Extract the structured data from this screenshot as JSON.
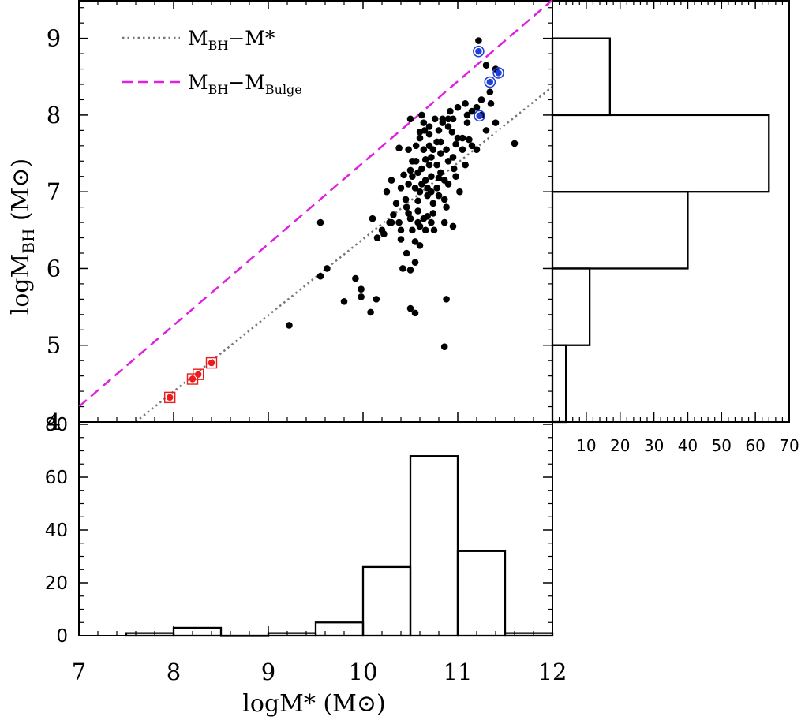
{
  "chart_data": {
    "type": "scatter",
    "description_title": "",
    "main": {
      "xlim": [
        7,
        12
      ],
      "ylim": [
        4,
        9.5
      ],
      "xticks": [
        "7",
        "8",
        "9",
        "10",
        "11",
        "12"
      ],
      "yticks": [
        "4",
        "5",
        "6",
        "7",
        "8",
        "9"
      ],
      "xlabel": {
        "base": "logM",
        "mid": "*",
        "tail": " (M",
        "sun": "⊙",
        "close": ")"
      },
      "ylabel": {
        "base": "logM",
        "sub": "BH",
        "tail": " (M",
        "sun": "⊙",
        "close": ")"
      },
      "series": [
        {
          "name": "galaxies",
          "color": "#000000",
          "points": [
            [
              10.38,
              6.6
            ],
            [
              10.48,
              6.72
            ],
            [
              10.58,
              6.88
            ],
            [
              10.72,
              7.45
            ],
            [
              10.9,
              7.1
            ],
            [
              10.62,
              7.3
            ],
            [
              10.55,
              7.05
            ],
            [
              10.7,
              7.6
            ],
            [
              10.8,
              7.8
            ],
            [
              10.68,
              6.95
            ],
            [
              10.5,
              6.65
            ],
            [
              10.45,
              6.9
            ],
            [
              10.4,
              6.5
            ],
            [
              10.66,
              7.15
            ],
            [
              10.74,
              6.85
            ],
            [
              10.82,
              7.25
            ],
            [
              10.88,
              7.55
            ],
            [
              10.6,
              7.7
            ],
            [
              10.52,
              7.4
            ],
            [
              10.78,
              7.05
            ],
            [
              10.9,
              7.85
            ],
            [
              10.95,
              7.95
            ],
            [
              11.0,
              8.1
            ],
            [
              11.05,
              7.7
            ],
            [
              11.1,
              7.9
            ],
            [
              11.15,
              8.05
            ],
            [
              11.25,
              8.2
            ],
            [
              11.3,
              7.8
            ],
            [
              11.05,
              7.55
            ],
            [
              10.98,
              7.2
            ],
            [
              10.86,
              6.6
            ],
            [
              10.75,
              6.5
            ],
            [
              10.66,
              6.5
            ],
            [
              10.6,
              6.55
            ],
            [
              10.55,
              6.35
            ],
            [
              10.46,
              6.2
            ],
            [
              10.42,
              6.0
            ],
            [
              10.32,
              6.7
            ],
            [
              10.22,
              6.45
            ],
            [
              10.15,
              6.4
            ],
            [
              10.1,
              6.65
            ],
            [
              10.25,
              7.0
            ],
            [
              10.3,
              7.15
            ],
            [
              10.48,
              7.1
            ],
            [
              10.58,
              7.25
            ],
            [
              10.64,
              7.55
            ],
            [
              10.7,
              7.75
            ],
            [
              10.76,
              7.95
            ],
            [
              10.84,
              7.95
            ],
            [
              10.92,
              8.05
            ],
            [
              11.08,
              8.15
            ],
            [
              11.2,
              8.1
            ],
            [
              11.15,
              7.6
            ],
            [
              11.25,
              8.0
            ],
            [
              11.34,
              8.3
            ],
            [
              11.4,
              8.6
            ],
            [
              11.3,
              8.65
            ],
            [
              11.22,
              8.97
            ],
            [
              11.35,
              8.15
            ],
            [
              11.6,
              7.63
            ],
            [
              11.4,
              7.9
            ],
            [
              11.2,
              7.55
            ],
            [
              10.95,
              6.55
            ],
            [
              10.6,
              6.3
            ],
            [
              10.55,
              6.08
            ],
            [
              10.5,
              5.98
            ],
            [
              10.5,
              5.48
            ],
            [
              10.55,
              5.42
            ],
            [
              10.88,
              5.6
            ],
            [
              10.86,
              4.98
            ],
            [
              10.14,
              5.6
            ],
            [
              10.08,
              5.43
            ],
            [
              9.98,
              5.73
            ],
            [
              9.98,
              5.63
            ],
            [
              9.92,
              5.87
            ],
            [
              9.8,
              5.57
            ],
            [
              9.62,
              6.0
            ],
            [
              9.55,
              6.6
            ],
            [
              9.55,
              5.9
            ],
            [
              9.22,
              5.26
            ],
            [
              10.38,
              7.57
            ],
            [
              10.65,
              7.8
            ],
            [
              10.88,
              6.8
            ],
            [
              10.82,
              7.5
            ],
            [
              10.7,
              7.35
            ],
            [
              10.6,
              7.0
            ],
            [
              10.56,
              7.6
            ],
            [
              10.64,
              7.9
            ],
            [
              10.58,
              6.75
            ],
            [
              10.46,
              6.8
            ],
            [
              10.35,
              6.85
            ],
            [
              10.43,
              7.22
            ],
            [
              10.72,
              7.2
            ],
            [
              10.82,
              7.65
            ],
            [
              10.96,
              7.3
            ],
            [
              10.78,
              7.35
            ],
            [
              10.62,
              7.1
            ],
            [
              10.52,
              7.2
            ],
            [
              10.78,
              7.65
            ],
            [
              10.84,
              7.9
            ],
            [
              10.94,
              7.78
            ],
            [
              10.98,
              7.62
            ],
            [
              11.08,
              7.35
            ],
            [
              11.12,
              7.68
            ],
            [
              11.02,
              7.0
            ],
            [
              10.72,
              7.0
            ],
            [
              10.66,
              7.42
            ],
            [
              10.68,
              6.68
            ],
            [
              10.86,
              7.15
            ],
            [
              10.7,
              7.85
            ],
            [
              10.56,
              7.4
            ],
            [
              10.48,
              7.55
            ],
            [
              10.5,
              7.95
            ],
            [
              10.62,
              8.0
            ],
            [
              10.74,
              7.55
            ],
            [
              10.8,
              6.95
            ],
            [
              10.52,
              6.5
            ],
            [
              10.64,
              6.65
            ],
            [
              10.3,
              6.6
            ],
            [
              10.28,
              6.6
            ],
            [
              10.4,
              7.05
            ],
            [
              10.9,
              7.4
            ],
            [
              10.95,
              7.45
            ],
            [
              11.0,
              7.7
            ],
            [
              10.58,
              6.6
            ],
            [
              10.74,
              6.72
            ],
            [
              10.86,
              6.9
            ],
            [
              11.1,
              8.0
            ],
            [
              10.2,
              6.5
            ],
            [
              10.72,
              6.6
            ],
            [
              10.4,
              6.38
            ],
            [
              10.68,
              7.05
            ],
            [
              10.6,
              7.78
            ],
            [
              10.9,
              7.95
            ],
            [
              10.8,
              7.18
            ],
            [
              10.5,
              7.28
            ]
          ]
        },
        {
          "name": "blue circled",
          "color": "#1f3fd6",
          "points": [
            [
              11.22,
              8.83
            ],
            [
              11.43,
              8.55
            ],
            [
              11.34,
              8.43
            ],
            [
              11.23,
              7.99
            ]
          ]
        },
        {
          "name": "red boxed",
          "color": "#ee1b1b",
          "points": [
            [
              7.96,
              4.32
            ],
            [
              8.2,
              4.56
            ],
            [
              8.26,
              4.62
            ],
            [
              8.4,
              4.77
            ]
          ]
        }
      ],
      "lines": [
        {
          "name": "MBH-M*",
          "style": "dotted",
          "color": "#777777",
          "x": [
            7.6,
            12.0
          ],
          "y": [
            4.0,
            8.37
          ]
        },
        {
          "name": "MBH-MBulge",
          "style": "dashed",
          "color": "#e020e0",
          "x": [
            7.0,
            12.0
          ],
          "y": [
            4.2,
            9.5
          ]
        }
      ],
      "legend": [
        {
          "label_base": "M",
          "label_sub": "BH",
          "label_mid": "−M",
          "label_tail": "*",
          "tail_is_sub": false,
          "style": "dotted",
          "color": "#777777"
        },
        {
          "label_base": "M",
          "label_sub": "BH",
          "label_mid": "−M",
          "label_tail": "Bulge",
          "tail_is_sub": true,
          "style": "dashed",
          "color": "#e020e0"
        }
      ]
    },
    "bottom_hist": {
      "type": "histogram",
      "xlim": [
        7,
        12
      ],
      "ylim": [
        0,
        80
      ],
      "yticks": [
        "0",
        "20",
        "40",
        "60",
        "80"
      ],
      "bin_edges": [
        7.5,
        8.0,
        8.5,
        9.0,
        9.5,
        10.0,
        10.5,
        11.0,
        11.5,
        12.0
      ],
      "counts": [
        1,
        3,
        0,
        1,
        5,
        26,
        68,
        32,
        1
      ]
    },
    "right_hist": {
      "type": "histogram",
      "orientation": "horizontal",
      "xlim": [
        0,
        70
      ],
      "xticks": [
        "10",
        "20",
        "30",
        "40",
        "50",
        "60",
        "70"
      ],
      "bin_edges": [
        4,
        5,
        6,
        7,
        8,
        9
      ],
      "counts": [
        4,
        11,
        40,
        64,
        17
      ]
    }
  }
}
